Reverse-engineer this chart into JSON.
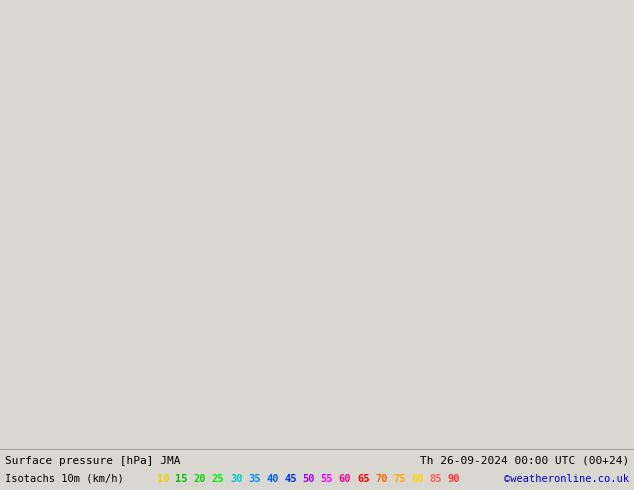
{
  "title_left": "Surface pressure [hPa] JMA",
  "title_right": "Th 26-09-2024 00:00 UTC (00+24)",
  "legend_label": "Isotachs 10m (km/h)",
  "copyright": "©weatheronline.co.uk",
  "legend_values": [
    10,
    15,
    20,
    25,
    30,
    35,
    40,
    45,
    50,
    55,
    60,
    65,
    70,
    75,
    80,
    85,
    90
  ],
  "legend_colors": [
    "#f0d000",
    "#00c000",
    "#00d800",
    "#00ee00",
    "#00cccc",
    "#0090ff",
    "#0060ff",
    "#0030ff",
    "#aa00ff",
    "#ff00ff",
    "#ff0090",
    "#ff0000",
    "#ff6000",
    "#ffaa00",
    "#ffd800",
    "#ff6060",
    "#ff3030"
  ],
  "figsize": [
    6.34,
    4.9
  ],
  "dpi": 100,
  "bottom_bg": "#d8d8d0",
  "font_color_left": "#000000",
  "font_color_right": "#000000",
  "font_color_copyright": "#0000cc",
  "label_fontsize": 7.5,
  "title_fontsize": 8.0,
  "map_extent": [
    -15,
    20,
    42,
    62
  ],
  "land_color": "#a8d4a0",
  "sea_color": "#c8d8e8",
  "contour_line_color": "#000000",
  "blue_contour_color": "#4488ff",
  "cyan_contour_color": "#00cccc"
}
